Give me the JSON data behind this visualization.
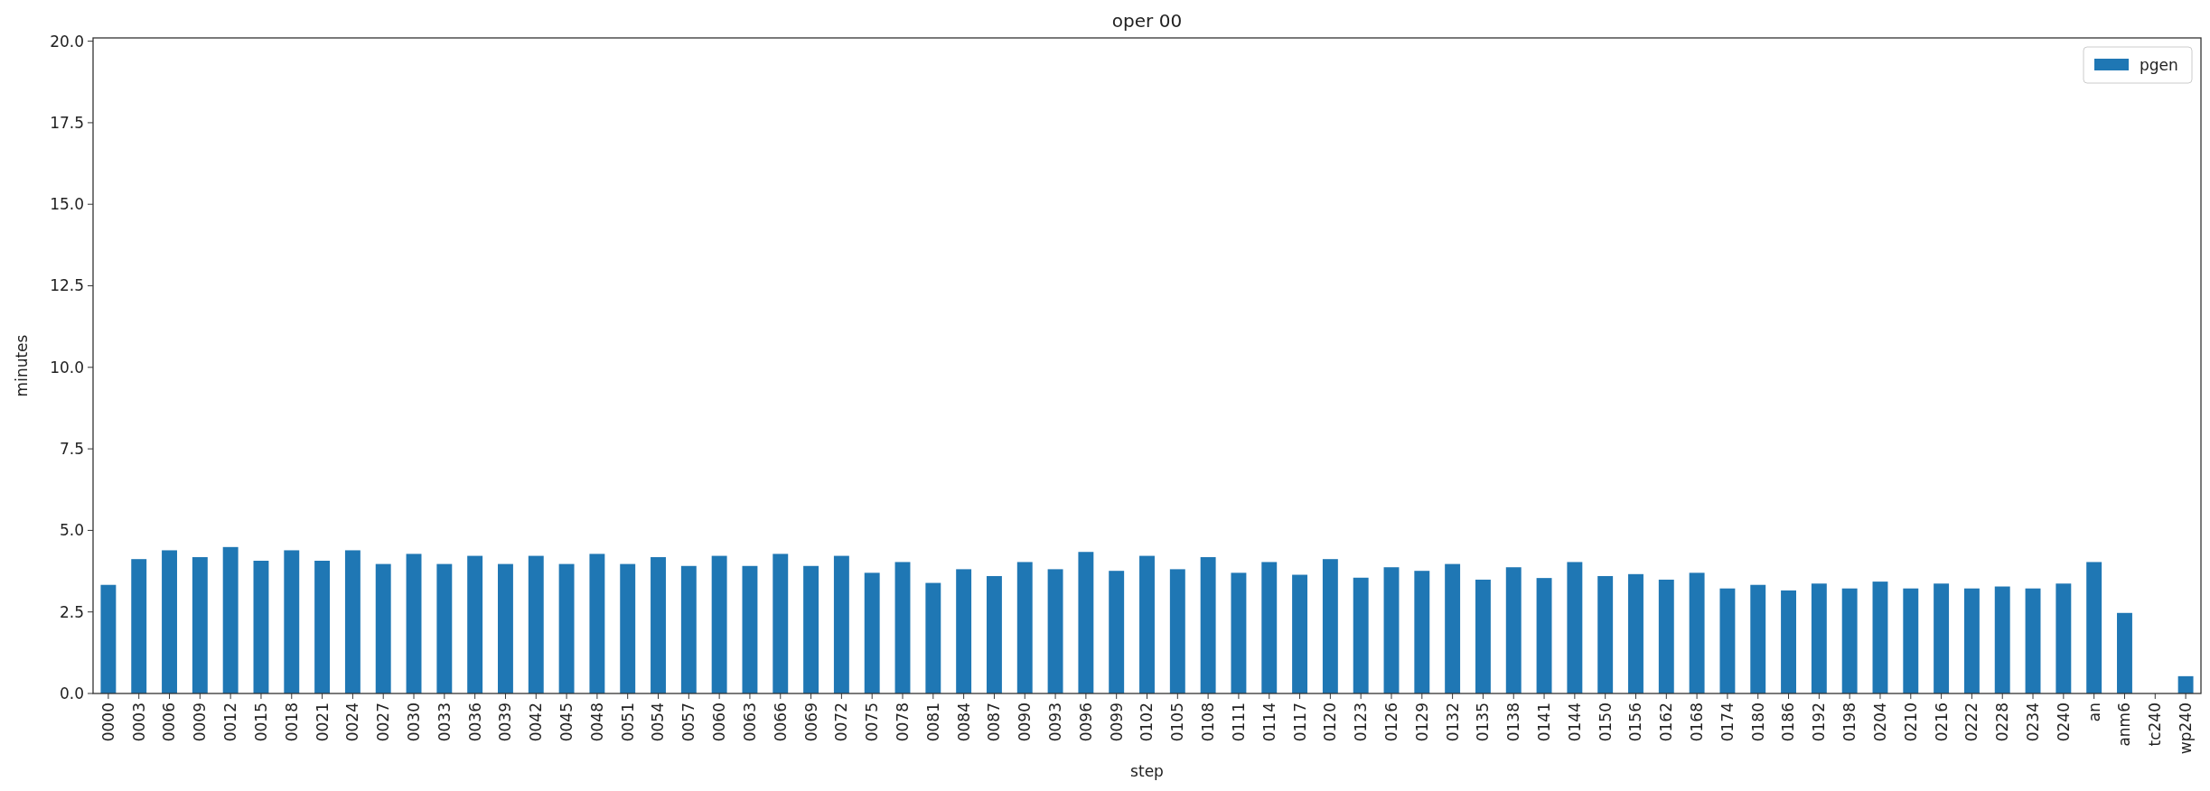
{
  "chart_data": {
    "type": "bar",
    "title": "oper 00",
    "xlabel": "step",
    "ylabel": "minutes",
    "categories": [
      "0000",
      "0003",
      "0006",
      "0009",
      "0012",
      "0015",
      "0018",
      "0021",
      "0024",
      "0027",
      "0030",
      "0033",
      "0036",
      "0039",
      "0042",
      "0045",
      "0048",
      "0051",
      "0054",
      "0057",
      "0060",
      "0063",
      "0066",
      "0069",
      "0072",
      "0075",
      "0078",
      "0081",
      "0084",
      "0087",
      "0090",
      "0093",
      "0096",
      "0099",
      "0102",
      "0105",
      "0108",
      "0111",
      "0114",
      "0117",
      "0120",
      "0123",
      "0126",
      "0129",
      "0132",
      "0135",
      "0138",
      "0141",
      "0144",
      "0150",
      "0156",
      "0162",
      "0168",
      "0174",
      "0180",
      "0186",
      "0192",
      "0198",
      "0204",
      "0210",
      "0216",
      "0222",
      "0228",
      "0234",
      "0240",
      "an",
      "anm6",
      "tc240",
      "wp240"
    ],
    "series": [
      {
        "name": "pgen",
        "color": "#1f77b4",
        "values": [
          3.33,
          4.12,
          4.39,
          4.18,
          4.49,
          4.07,
          4.39,
          4.07,
          4.39,
          3.97,
          4.28,
          3.97,
          4.22,
          3.97,
          4.22,
          3.97,
          4.28,
          3.97,
          4.18,
          3.91,
          4.22,
          3.91,
          4.28,
          3.91,
          4.22,
          3.7,
          4.03,
          3.39,
          3.81,
          3.6,
          4.03,
          3.81,
          4.34,
          3.76,
          4.22,
          3.81,
          4.18,
          3.7,
          4.03,
          3.64,
          4.12,
          3.55,
          3.87,
          3.76,
          3.97,
          3.49,
          3.87,
          3.54,
          4.03,
          3.6,
          3.66,
          3.49,
          3.7,
          3.22,
          3.33,
          3.16,
          3.37,
          3.22,
          3.43,
          3.22,
          3.37,
          3.22,
          3.28,
          3.22,
          3.37,
          4.03,
          2.47,
          0,
          0.53
        ]
      }
    ],
    "ylim": [
      0,
      20.1
    ],
    "yticks": [
      {
        "value": 0,
        "label": "0.0"
      },
      {
        "value": 2.5,
        "label": "2.5"
      },
      {
        "value": 5,
        "label": "5.0"
      },
      {
        "value": 7.5,
        "label": "7.5"
      },
      {
        "value": 10,
        "label": "10.0"
      },
      {
        "value": 12.5,
        "label": "12.5"
      },
      {
        "value": 15,
        "label": "15.0"
      },
      {
        "value": 17.5,
        "label": "17.5"
      },
      {
        "value": 20,
        "label": "20.0"
      }
    ],
    "legend": "top right",
    "grid": false
  }
}
